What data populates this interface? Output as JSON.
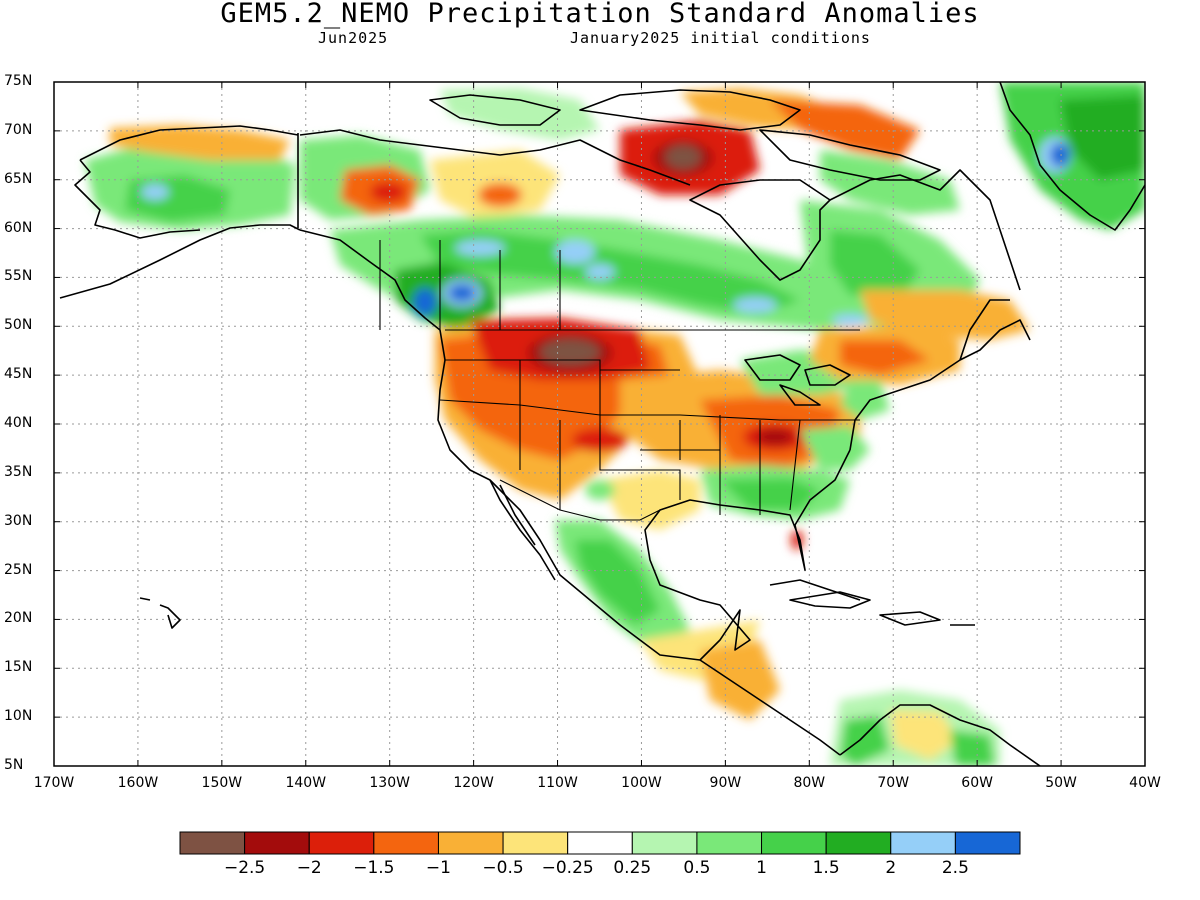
{
  "header": {
    "title": "GEM5.2_NEMO Precipitation Standard Anomalies",
    "valid_month": "Jun2025",
    "init": "January2025 initial conditions"
  },
  "axes": {
    "lat_labels": [
      "75N",
      "70N",
      "65N",
      "60N",
      "55N",
      "50N",
      "45N",
      "40N",
      "35N",
      "30N",
      "25N",
      "20N",
      "15N",
      "10N",
      "5N"
    ],
    "lon_labels": [
      "170W",
      "160W",
      "150W",
      "140W",
      "130W",
      "120W",
      "110W",
      "100W",
      "90W",
      "80W",
      "70W",
      "60W",
      "50W",
      "40W"
    ],
    "lon_range": [
      -170,
      -40
    ],
    "lat_range": [
      5,
      75
    ]
  },
  "colorbar": {
    "colors": [
      "#7e5243",
      "#a30c0c",
      "#dc1f0a",
      "#f4650f",
      "#f9b036",
      "#fde479",
      "#ffffff",
      "#b5f5b1",
      "#7ae879",
      "#45d14a",
      "#22ad22",
      "#95cff8",
      "#1767d6"
    ],
    "labels": [
      "−2.5",
      "−2",
      "−1.5",
      "−1",
      "−0.5",
      "−0.25",
      "0.25",
      "0.5",
      "1",
      "1.5",
      "2",
      "2.5"
    ]
  },
  "anomaly_regions": [
    {
      "region": "Northern Great Plains / Montana",
      "value": -2.5
    },
    {
      "region": "Western United States",
      "value": -1.5
    },
    {
      "region": "Tennessee Valley",
      "value": -2
    },
    {
      "region": "Hudson Bay / Nunavut",
      "value": -2.5
    },
    {
      "region": "Northern Canada / Prairies",
      "value": 1.5
    },
    {
      "region": "British Columbia coast",
      "value": 2.5
    },
    {
      "region": "Greenland",
      "value": 2
    },
    {
      "region": "Southeastern United States",
      "value": 1
    },
    {
      "region": "Mexico",
      "value": 1
    }
  ]
}
